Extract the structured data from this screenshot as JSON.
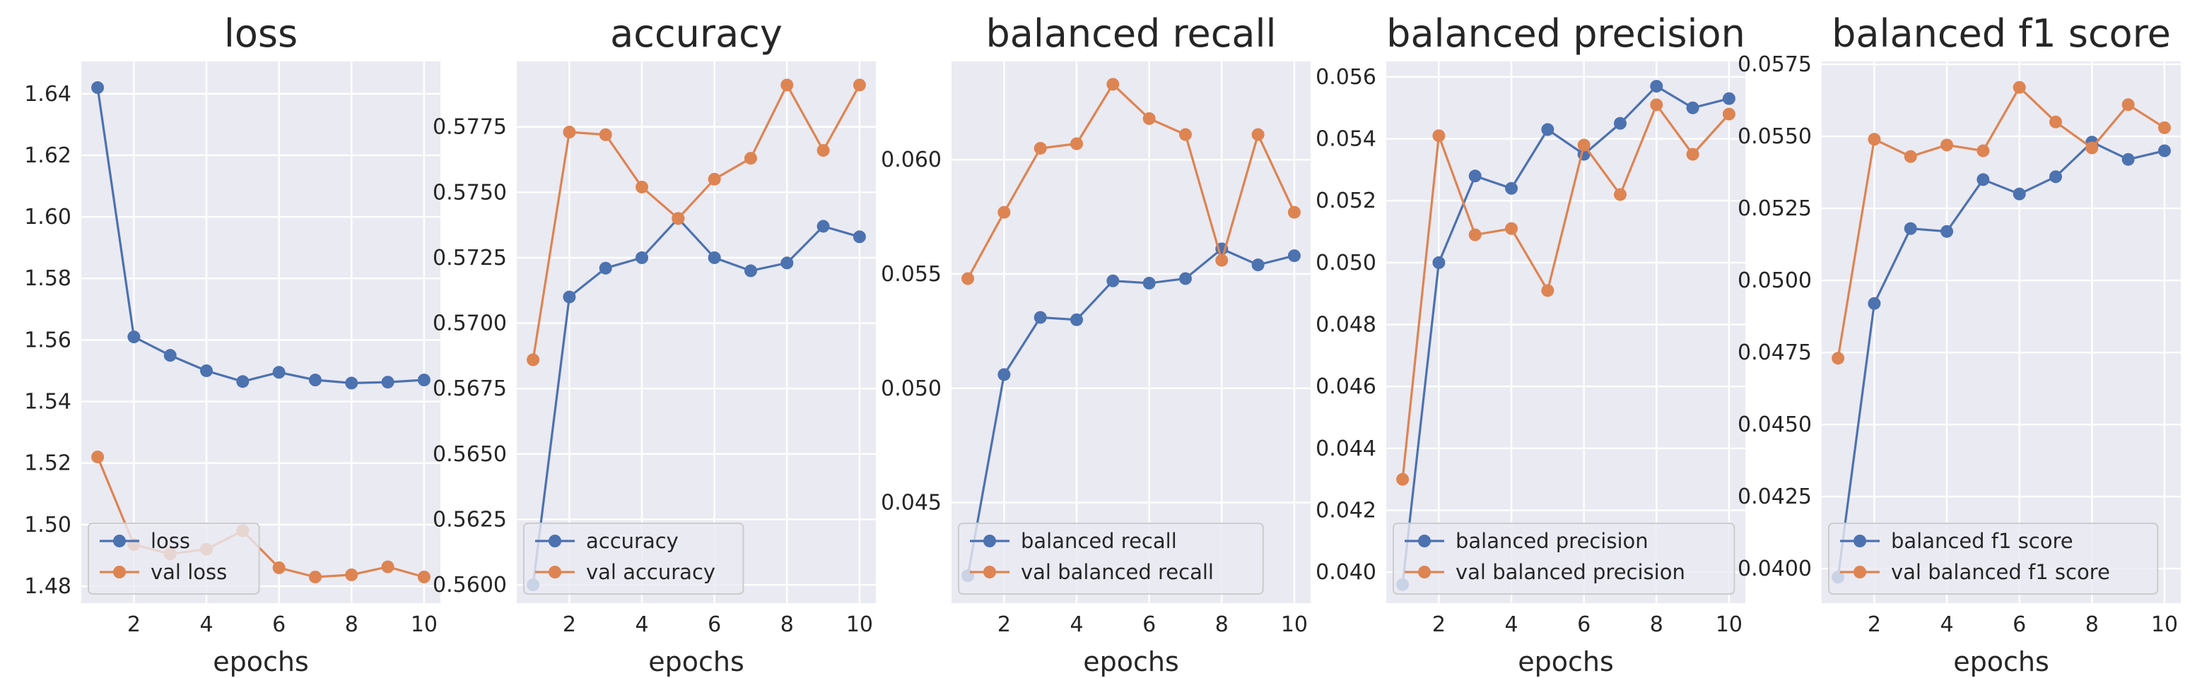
{
  "colors": {
    "train": "#4c72b0",
    "val": "#dd8452",
    "panel": "#eaeaf2",
    "grid": "#ffffff",
    "text": "#262626"
  },
  "chart_data": [
    {
      "type": "line",
      "title": "loss",
      "xlabel": "epochs",
      "x": [
        1,
        2,
        3,
        4,
        5,
        6,
        7,
        8,
        9,
        10
      ],
      "xticks": [
        2,
        4,
        6,
        8,
        10
      ],
      "yticks": [
        1.48,
        1.5,
        1.52,
        1.54,
        1.56,
        1.58,
        1.6,
        1.62,
        1.64
      ],
      "ytick_labels": [
        "1.48",
        "1.50",
        "1.52",
        "1.54",
        "1.56",
        "1.58",
        "1.60",
        "1.62",
        "1.64"
      ],
      "ylim": [
        1.4745,
        1.6505
      ],
      "xlim": [
        0.55,
        10.45
      ],
      "grid": true,
      "legend": "lower left",
      "series": [
        {
          "name": "loss",
          "values": [
            1.642,
            1.561,
            1.555,
            1.55,
            1.5465,
            1.5495,
            1.547,
            1.546,
            1.5463,
            1.547
          ]
        },
        {
          "name": "val loss",
          "values": [
            1.522,
            1.4935,
            1.4905,
            1.492,
            1.498,
            1.486,
            1.483,
            1.4837,
            1.4863,
            1.483
          ]
        }
      ]
    },
    {
      "type": "line",
      "title": "accuracy",
      "xlabel": "epochs",
      "x": [
        1,
        2,
        3,
        4,
        5,
        6,
        7,
        8,
        9,
        10
      ],
      "xticks": [
        2,
        4,
        6,
        8,
        10
      ],
      "yticks": [
        0.56,
        0.5625,
        0.565,
        0.5675,
        0.57,
        0.5725,
        0.575,
        0.5775
      ],
      "ytick_labels": [
        "0.5600",
        "0.5625",
        "0.5650",
        "0.5675",
        "0.5700",
        "0.5725",
        "0.5750",
        "0.5775"
      ],
      "ylim": [
        0.5593,
        0.58
      ],
      "xlim": [
        0.55,
        10.45
      ],
      "grid": true,
      "legend": "lower left",
      "series": [
        {
          "name": "accuracy",
          "values": [
            0.56,
            0.571,
            0.5721,
            0.5725,
            0.574,
            0.5725,
            0.572,
            0.5723,
            0.5737,
            0.5733
          ]
        },
        {
          "name": "val accuracy",
          "values": [
            0.5686,
            0.5773,
            0.5772,
            0.5752,
            0.574,
            0.5755,
            0.5763,
            0.5791,
            0.5766,
            0.5791
          ]
        }
      ]
    },
    {
      "type": "line",
      "title": "balanced recall",
      "xlabel": "epochs",
      "x": [
        1,
        2,
        3,
        4,
        5,
        6,
        7,
        8,
        9,
        10
      ],
      "xticks": [
        2,
        4,
        6,
        8,
        10
      ],
      "yticks": [
        0.045,
        0.05,
        0.055,
        0.06
      ],
      "ytick_labels": [
        "0.045",
        "0.050",
        "0.055",
        "0.060"
      ],
      "ylim": [
        0.0406,
        0.0643
      ],
      "xlim": [
        0.55,
        10.45
      ],
      "grid": true,
      "legend": "lower left",
      "series": [
        {
          "name": "balanced recall",
          "values": [
            0.0418,
            0.0506,
            0.0531,
            0.053,
            0.0547,
            0.0546,
            0.0548,
            0.0561,
            0.0554,
            0.0558
          ]
        },
        {
          "name": "val balanced recall",
          "values": [
            0.0548,
            0.0577,
            0.0605,
            0.0607,
            0.0633,
            0.0618,
            0.0611,
            0.0556,
            0.0611,
            0.0577
          ]
        }
      ]
    },
    {
      "type": "line",
      "title": "balanced precision",
      "xlabel": "epochs",
      "x": [
        1,
        2,
        3,
        4,
        5,
        6,
        7,
        8,
        9,
        10
      ],
      "xticks": [
        2,
        4,
        6,
        8,
        10
      ],
      "yticks": [
        0.04,
        0.042,
        0.044,
        0.046,
        0.048,
        0.05,
        0.052,
        0.054,
        0.056
      ],
      "ytick_labels": [
        "0.040",
        "0.042",
        "0.044",
        "0.046",
        "0.048",
        "0.050",
        "0.052",
        "0.054",
        "0.056"
      ],
      "ylim": [
        0.039,
        0.0565
      ],
      "xlim": [
        0.55,
        10.45
      ],
      "grid": true,
      "legend": "lower left",
      "series": [
        {
          "name": "balanced precision",
          "values": [
            0.0396,
            0.05,
            0.0528,
            0.0524,
            0.0543,
            0.0535,
            0.0545,
            0.0557,
            0.055,
            0.0553
          ]
        },
        {
          "name": "val balanced precision",
          "values": [
            0.043,
            0.0541,
            0.0509,
            0.0511,
            0.0491,
            0.0538,
            0.0522,
            0.0551,
            0.0535,
            0.0548
          ]
        }
      ]
    },
    {
      "type": "line",
      "title": "balanced f1 score",
      "xlabel": "epochs",
      "x": [
        1,
        2,
        3,
        4,
        5,
        6,
        7,
        8,
        9,
        10
      ],
      "xticks": [
        2,
        4,
        6,
        8,
        10
      ],
      "yticks": [
        0.04,
        0.0425,
        0.045,
        0.0475,
        0.05,
        0.0525,
        0.055,
        0.0575
      ],
      "ytick_labels": [
        "0.0400",
        "0.0425",
        "0.0450",
        "0.0475",
        "0.0500",
        "0.0525",
        "0.0550",
        "0.0575"
      ],
      "ylim": [
        0.0388,
        0.0576
      ],
      "xlim": [
        0.55,
        10.45
      ],
      "grid": true,
      "legend": "lower left",
      "series": [
        {
          "name": "balanced f1 score",
          "values": [
            0.0397,
            0.0492,
            0.0518,
            0.0517,
            0.0535,
            0.053,
            0.0536,
            0.0548,
            0.0542,
            0.0545
          ]
        },
        {
          "name": "val balanced f1 score",
          "values": [
            0.0473,
            0.0549,
            0.0543,
            0.0547,
            0.0545,
            0.0567,
            0.0555,
            0.0546,
            0.0561,
            0.0553
          ]
        }
      ]
    }
  ]
}
